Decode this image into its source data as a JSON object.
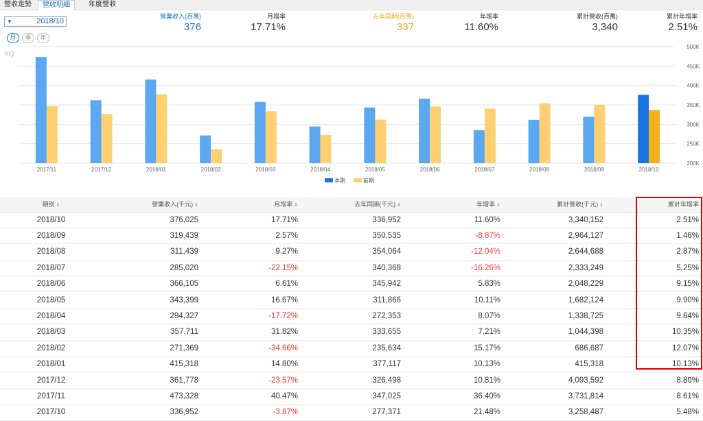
{
  "tabs": [
    "營收走勢",
    "營收明細",
    "年度營收"
  ],
  "active_tab": 1,
  "date_select": {
    "value": "2018/10",
    "arrow": "▼"
  },
  "period_buttons": [
    "月",
    "季",
    "年"
  ],
  "stats": [
    {
      "label": "營業收入(百萬)",
      "value": "376",
      "style": "blue"
    },
    {
      "label": "月增率",
      "value": "17.71%",
      "style": ""
    },
    {
      "label": "去年同期(百萬)",
      "value": "337",
      "style": "orange"
    },
    {
      "label": "年增率",
      "value": "11.60%",
      "style": ""
    },
    {
      "label": "累計營收(百萬)",
      "value": "3,340",
      "style": ""
    },
    {
      "label": "累計年增率",
      "value": "2.51%",
      "style": ""
    }
  ],
  "chart_data": {
    "type": "bar",
    "watermark": "XQ",
    "categories": [
      "2017/11",
      "2017/12",
      "2018/01",
      "2018/02",
      "2018/03",
      "2018/04",
      "2018/05",
      "2018/06",
      "2018/07",
      "2018/08",
      "2018/09",
      "2018/10"
    ],
    "series": [
      {
        "name": "本期",
        "color": "#5ba7f0",
        "values": [
          473328,
          361778,
          415318,
          271369,
          357711,
          294327,
          343399,
          366105,
          285020,
          311439,
          319439,
          376025
        ]
      },
      {
        "name": "前期",
        "color": "#ffcf73",
        "values": [
          347025,
          326498,
          377117,
          235634,
          333655,
          272353,
          311866,
          345942,
          340368,
          354064,
          350535,
          336952
        ]
      }
    ],
    "highlight_color_current": "#1a73e0",
    "highlight_color_prior": "#f5b020",
    "ylim": [
      200000,
      500000
    ],
    "yticks": [
      "500K",
      "450K",
      "400K",
      "350K",
      "300K",
      "250K",
      "200K"
    ],
    "ytick_values": [
      500000,
      450000,
      400000,
      350000,
      300000,
      250000,
      200000
    ]
  },
  "table": {
    "headers": [
      "期別",
      "營業收入(千元)",
      "月增率",
      "去年同期(千元)",
      "年增率",
      "累計營收(千元)",
      "累計年增率"
    ],
    "sort_icon": "⬍",
    "rows": [
      [
        "2018/10",
        "376,025",
        "17.71%",
        "336,952",
        "11.60%",
        "3,340,152",
        "2.51%"
      ],
      [
        "2018/09",
        "319,439",
        "2.57%",
        "350,535",
        "-8.87%",
        "2,964,127",
        "1.46%"
      ],
      [
        "2018/08",
        "311,439",
        "9.27%",
        "354,064",
        "-12.04%",
        "2,644,688",
        "2.87%"
      ],
      [
        "2018/07",
        "285,020",
        "-22.15%",
        "340,368",
        "-16.26%",
        "2,333,249",
        "5.25%"
      ],
      [
        "2018/06",
        "366,105",
        "6.61%",
        "345,942",
        "5.83%",
        "2,048,229",
        "9.15%"
      ],
      [
        "2018/05",
        "343,399",
        "16.67%",
        "311,866",
        "10.11%",
        "1,682,124",
        "9.90%"
      ],
      [
        "2018/04",
        "294,327",
        "-17.72%",
        "272,353",
        "8.07%",
        "1,338,725",
        "9.84%"
      ],
      [
        "2018/03",
        "357,711",
        "31.82%",
        "333,655",
        "7.21%",
        "1,044,398",
        "10.35%"
      ],
      [
        "2018/02",
        "271,369",
        "-34.66%",
        "235,634",
        "15.17%",
        "686,687",
        "12.07%"
      ],
      [
        "2018/01",
        "415,318",
        "14.80%",
        "377,117",
        "10.13%",
        "415,318",
        "10.13%"
      ],
      [
        "2017/12",
        "361,778",
        "-23.57%",
        "326,498",
        "10.81%",
        "4,093,592",
        "8.80%"
      ],
      [
        "2017/11",
        "473,328",
        "40.47%",
        "347,025",
        "36.40%",
        "3,731,814",
        "8.61%"
      ],
      [
        "2017/10",
        "336,952",
        "-3.87%",
        "277,371",
        "21.48%",
        "3,258,487",
        "5.48%"
      ]
    ]
  },
  "highlight": {
    "column": "累計年增率",
    "color": "#e00000"
  }
}
